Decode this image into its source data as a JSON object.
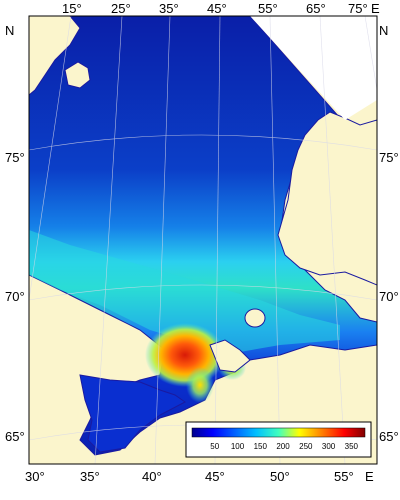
{
  "map": {
    "top_longitudes": [
      "15°",
      "25°",
      "35°",
      "45°",
      "55°",
      "65°",
      "75°"
    ],
    "top_east": "E",
    "bottom_longitudes": [
      "30°",
      "35°",
      "40°",
      "45°",
      "50°",
      "55°"
    ],
    "bottom_east": "E",
    "left_latitudes": [
      "75°",
      "70°",
      "65°"
    ],
    "right_latitudes": [
      "75°",
      "70°",
      "65°"
    ],
    "north_left": "N",
    "north_right": "N"
  },
  "colorbar": {
    "ticks": [
      "50",
      "100",
      "150",
      "200",
      "250",
      "300",
      "350"
    ],
    "values": [
      50,
      100,
      150,
      200,
      250,
      300,
      350
    ],
    "range": [
      0,
      380
    ],
    "colormap": [
      "#00008f",
      "#0000ff",
      "#00bfff",
      "#40ffbf",
      "#ffff00",
      "#ff8000",
      "#ff0000",
      "#800000"
    ]
  },
  "colors": {
    "land": "#fbf5cc",
    "coast": "#1a1aa0",
    "sea_low": "#0a2fb0",
    "sea_high": "#e62a10"
  }
}
